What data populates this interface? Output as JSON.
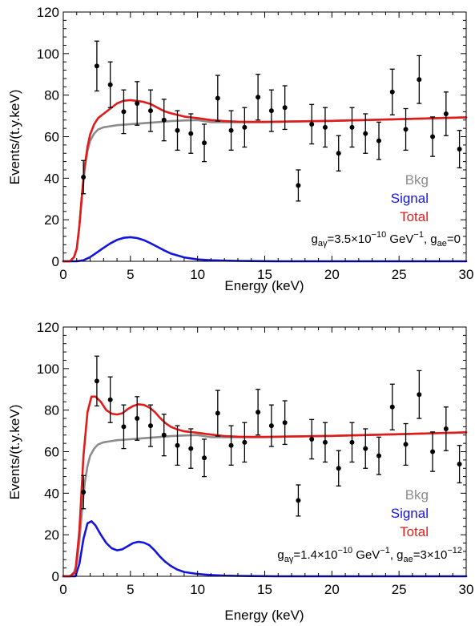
{
  "chart_data": [
    {
      "type": "scatter",
      "xlabel": "Energy (keV)",
      "ylabel": "Events/(t.y.keV)",
      "xlim": [
        0,
        30
      ],
      "ylim": [
        0,
        120
      ],
      "xticks": [
        "0",
        "5",
        "10",
        "15",
        "20",
        "25",
        "30"
      ],
      "yticks": [
        "0",
        "20",
        "40",
        "60",
        "80",
        "100",
        "120"
      ],
      "grid": false,
      "legend_placement": "right, inside plot",
      "legend": [
        {
          "label": "Bkg",
          "color": "#8c8c8c"
        },
        {
          "label": "Signal",
          "color": "#1414e0"
        },
        {
          "label": "Total",
          "color": "#e21a1a"
        }
      ],
      "annotation": {
        "lines": [
          {
            "s": "g"
          },
          {
            "s": "aγ",
            "sub": true
          },
          {
            "s": "=3.5×10"
          },
          {
            "s": "−10",
            "sup": true
          },
          {
            "s": " GeV"
          },
          {
            "s": "−1",
            "sup": true
          },
          {
            "s": ", g"
          },
          {
            "s": "ae",
            "sub": true
          },
          {
            "s": "=0"
          }
        ]
      },
      "data_points": {
        "x": [
          1.5,
          2.5,
          3.5,
          4.5,
          5.5,
          6.5,
          7.5,
          8.5,
          9.5,
          10.5,
          11.5,
          12.5,
          13.5,
          14.5,
          15.5,
          16.5,
          17.5,
          18.5,
          19.5,
          20.5,
          21.5,
          22.5,
          23.5,
          24.5,
          25.5,
          26.5,
          27.5,
          28.5,
          29.5
        ],
        "y": [
          40.5,
          94,
          85,
          72,
          76,
          72.5,
          68,
          63,
          61.5,
          57,
          78.5,
          63,
          64.5,
          79,
          72.5,
          74,
          36.5,
          66,
          64.5,
          52,
          64.5,
          61.5,
          58,
          81.5,
          63.5,
          87.5,
          60,
          71,
          54
        ],
        "yerr": [
          8,
          12,
          11,
          10.5,
          10.5,
          10,
          10,
          9.5,
          9.5,
          9,
          11,
          9.5,
          9.5,
          11,
          10,
          10.5,
          7.5,
          9.5,
          9.5,
          8.5,
          9.5,
          9.5,
          9,
          11,
          10,
          11.5,
          9.5,
          10.5,
          9
        ]
      },
      "series": [
        {
          "name": "Bkg",
          "color": "#8c8c8c",
          "x": [
            0,
            0.5,
            0.8,
            1.0,
            1.2,
            1.4,
            1.6,
            1.8,
            2.0,
            2.3,
            2.6,
            3.0,
            3.5,
            4,
            5,
            6,
            7,
            8,
            9,
            10,
            10.5,
            11,
            12,
            13,
            14,
            15,
            17,
            20,
            25,
            30
          ],
          "y": [
            0,
            0,
            2,
            6,
            17,
            32,
            45,
            53,
            58,
            61.5,
            63.5,
            64.5,
            65,
            65.5,
            66,
            66.5,
            67,
            67.5,
            67.8,
            68,
            67.5,
            67,
            67,
            67,
            67,
            67,
            67.3,
            67.6,
            68.4,
            69.3
          ]
        },
        {
          "name": "Signal",
          "color": "#1414e0",
          "x": [
            0,
            1,
            1.5,
            2,
            2.5,
            3,
            3.5,
            4,
            4.5,
            5,
            5.5,
            6,
            6.5,
            7,
            7.5,
            8,
            9,
            10,
            11,
            12,
            13,
            14,
            16,
            20,
            30
          ],
          "y": [
            0,
            0,
            0.5,
            2,
            4.2,
            6.5,
            8.6,
            10.3,
            11.3,
            11.6,
            11.2,
            10.2,
            8.7,
            7,
            5.3,
            3.8,
            1.9,
            0.9,
            0.5,
            0.3,
            0.2,
            0.1,
            0,
            0,
            0
          ]
        },
        {
          "name": "Total",
          "color": "#e21a1a",
          "x": [
            0,
            0.5,
            0.8,
            1.0,
            1.2,
            1.4,
            1.6,
            1.8,
            2.0,
            2.3,
            2.6,
            3.0,
            3.5,
            4,
            4.5,
            5,
            5.5,
            6,
            6.5,
            7,
            7.5,
            8,
            9,
            10,
            11,
            12,
            13,
            14,
            15,
            17,
            20,
            25,
            30
          ],
          "y": [
            0,
            0,
            2,
            6,
            17,
            33,
            46,
            55,
            61,
            66,
            69,
            71,
            73.5,
            76,
            77.3,
            77.6,
            77.2,
            76.7,
            75.7,
            74,
            72.3,
            71.3,
            69.7,
            68.9,
            68,
            67.5,
            67.2,
            67.1,
            67.1,
            67.3,
            67.6,
            68.4,
            69.3
          ]
        }
      ]
    },
    {
      "type": "scatter",
      "xlabel": "Energy (keV)",
      "ylabel": "Events/(t.y.keV)",
      "xlim": [
        0,
        30
      ],
      "ylim": [
        0,
        120
      ],
      "xticks": [
        "0",
        "5",
        "10",
        "15",
        "20",
        "25",
        "30"
      ],
      "yticks": [
        "0",
        "20",
        "40",
        "60",
        "80",
        "100",
        "120"
      ],
      "grid": false,
      "legend_placement": "right, inside plot",
      "legend": [
        {
          "label": "Bkg",
          "color": "#8c8c8c"
        },
        {
          "label": "Signal",
          "color": "#1414e0"
        },
        {
          "label": "Total",
          "color": "#e21a1a"
        }
      ],
      "annotation": {
        "lines": [
          {
            "s": "g"
          },
          {
            "s": "aγ",
            "sub": true
          },
          {
            "s": "=1.4×10"
          },
          {
            "s": "−10",
            "sup": true
          },
          {
            "s": " GeV"
          },
          {
            "s": "−1",
            "sup": true
          },
          {
            "s": ", g"
          },
          {
            "s": "ae",
            "sub": true
          },
          {
            "s": "=3×10"
          },
          {
            "s": "−12",
            "sup": true
          }
        ]
      },
      "data_points": {
        "x": [
          1.5,
          2.5,
          3.5,
          4.5,
          5.5,
          6.5,
          7.5,
          8.5,
          9.5,
          10.5,
          11.5,
          12.5,
          13.5,
          14.5,
          15.5,
          16.5,
          17.5,
          18.5,
          19.5,
          20.5,
          21.5,
          22.5,
          23.5,
          24.5,
          25.5,
          26.5,
          27.5,
          28.5,
          29.5
        ],
        "y": [
          40.5,
          94,
          85,
          72,
          76,
          72.5,
          68,
          63,
          61.5,
          57,
          78.5,
          63,
          64.5,
          79,
          72.5,
          74,
          36.5,
          66,
          64.5,
          52,
          64.5,
          61.5,
          58,
          81.5,
          63.5,
          87.5,
          60,
          71,
          54
        ],
        "yerr": [
          8,
          12,
          11,
          10.5,
          10.5,
          10,
          10,
          9.5,
          9.5,
          9,
          11,
          9.5,
          9.5,
          11,
          10,
          10.5,
          7.5,
          9.5,
          9.5,
          8.5,
          9.5,
          9.5,
          9,
          11,
          10,
          11.5,
          9.5,
          10.5,
          9
        ]
      },
      "series": [
        {
          "name": "Bkg",
          "color": "#8c8c8c",
          "x": [
            0,
            0.5,
            0.8,
            1.0,
            1.2,
            1.4,
            1.6,
            1.8,
            2.0,
            2.3,
            2.6,
            3.0,
            3.5,
            4,
            5,
            6,
            7,
            8,
            9,
            10,
            10.5,
            11,
            12,
            13,
            14,
            15,
            17,
            20,
            25,
            30
          ],
          "y": [
            0,
            0,
            2,
            6,
            17,
            32,
            45,
            53,
            58,
            61.5,
            63.5,
            64.5,
            65,
            65.5,
            66,
            66.5,
            67,
            67.5,
            67.8,
            68,
            67.5,
            67,
            67,
            67,
            67,
            67,
            67.3,
            67.6,
            68.4,
            69.3
          ]
        },
        {
          "name": "Signal",
          "color": "#1414e0",
          "x": [
            0,
            0.9,
            1.2,
            1.5,
            1.8,
            2.1,
            2.4,
            2.8,
            3.2,
            3.6,
            4.0,
            4.4,
            4.8,
            5.2,
            5.6,
            6.0,
            6.4,
            6.8,
            7.2,
            7.6,
            8.0,
            8.5,
            9,
            10,
            11,
            12,
            13,
            14,
            16,
            20,
            30
          ],
          "y": [
            0,
            0,
            6,
            18,
            25.5,
            26.5,
            24.5,
            20,
            16,
            13.5,
            12.5,
            13,
            14.5,
            16,
            16.6,
            16.2,
            15,
            12.5,
            9.5,
            7,
            5,
            3.2,
            2.1,
            1.1,
            0.6,
            0.3,
            0.2,
            0.1,
            0,
            0,
            0
          ]
        },
        {
          "name": "Total",
          "color": "#e21a1a",
          "x": [
            0,
            0.5,
            0.9,
            1.2,
            1.5,
            1.8,
            2.1,
            2.4,
            2.8,
            3.2,
            3.6,
            4.0,
            4.4,
            4.8,
            5.2,
            5.6,
            6.0,
            6.4,
            6.8,
            7.2,
            7.6,
            8.0,
            8.5,
            9,
            10,
            11,
            12,
            13,
            14,
            15,
            17,
            20,
            25,
            30
          ],
          "y": [
            0,
            0,
            2,
            22,
            58,
            79,
            86.5,
            86.5,
            84,
            80,
            78.3,
            77.9,
            78.5,
            80.5,
            82,
            82.8,
            82.5,
            81.3,
            79.2,
            76.3,
            73.8,
            72,
            70.7,
            69.8,
            69.1,
            68.2,
            67.5,
            67.2,
            67.1,
            67.1,
            67.3,
            67.6,
            68.4,
            69.3
          ]
        }
      ]
    }
  ]
}
